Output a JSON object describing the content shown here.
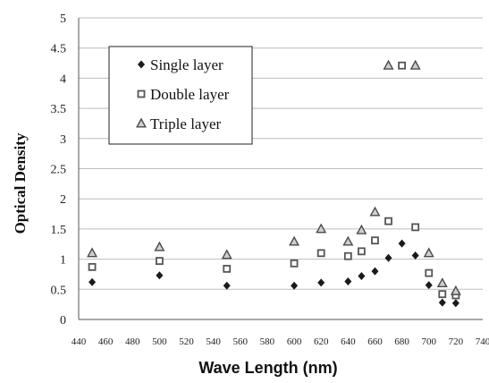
{
  "chart_data": {
    "type": "scatter",
    "title": "",
    "xlabel": "Wave Length (nm)",
    "ylabel": "Optical Density",
    "xlim": [
      440,
      740
    ],
    "ylim": [
      0,
      5
    ],
    "xticks": [
      440,
      460,
      480,
      500,
      520,
      540,
      560,
      580,
      600,
      620,
      640,
      660,
      680,
      700,
      720,
      740
    ],
    "xtick_labels": [
      "440",
      "460",
      "480",
      "500",
      "520",
      "540",
      "560",
      "580",
      "600",
      "620",
      "640",
      "660",
      "680",
      "700",
      "720",
      "740"
    ],
    "yticks": [
      0,
      0.5,
      1,
      1.5,
      2,
      2.5,
      3,
      3.5,
      4,
      4.5,
      5
    ],
    "ytick_labels": [
      "0",
      "0.5",
      "1",
      "1.5",
      "2",
      "2.5",
      "3",
      "3.5",
      "4",
      "4.5",
      "5"
    ],
    "grid": "horizontal",
    "legend_position": "top-left",
    "series": [
      {
        "name": "Single layer",
        "marker": "diamond",
        "color": "#1a1a1a",
        "points": [
          [
            450,
            0.62
          ],
          [
            500,
            0.73
          ],
          [
            550,
            0.56
          ],
          [
            600,
            0.56
          ],
          [
            620,
            0.61
          ],
          [
            640,
            0.63
          ],
          [
            650,
            0.72
          ],
          [
            660,
            0.8
          ],
          [
            670,
            1.02
          ],
          [
            680,
            1.26
          ],
          [
            690,
            1.06
          ],
          [
            700,
            0.57
          ],
          [
            710,
            0.28
          ],
          [
            720,
            0.27
          ]
        ]
      },
      {
        "name": "Double layer",
        "marker": "square",
        "color": "#555555",
        "points": [
          [
            450,
            0.87
          ],
          [
            500,
            0.97
          ],
          [
            550,
            0.84
          ],
          [
            600,
            0.93
          ],
          [
            620,
            1.1
          ],
          [
            640,
            1.05
          ],
          [
            650,
            1.13
          ],
          [
            660,
            1.31
          ],
          [
            670,
            1.63
          ],
          [
            680,
            4.21
          ],
          [
            690,
            1.53
          ],
          [
            700,
            0.77
          ],
          [
            710,
            0.42
          ],
          [
            720,
            0.4
          ]
        ]
      },
      {
        "name": "Triple layer",
        "marker": "triangle",
        "color": "#4a4a4a",
        "points": [
          [
            450,
            1.1
          ],
          [
            500,
            1.2
          ],
          [
            550,
            1.07
          ],
          [
            600,
            1.29
          ],
          [
            620,
            1.5
          ],
          [
            640,
            1.29
          ],
          [
            650,
            1.48
          ],
          [
            660,
            1.78
          ],
          [
            670,
            4.21
          ],
          [
            690,
            4.21
          ],
          [
            700,
            1.1
          ],
          [
            710,
            0.6
          ],
          [
            720,
            0.47
          ]
        ]
      }
    ]
  }
}
